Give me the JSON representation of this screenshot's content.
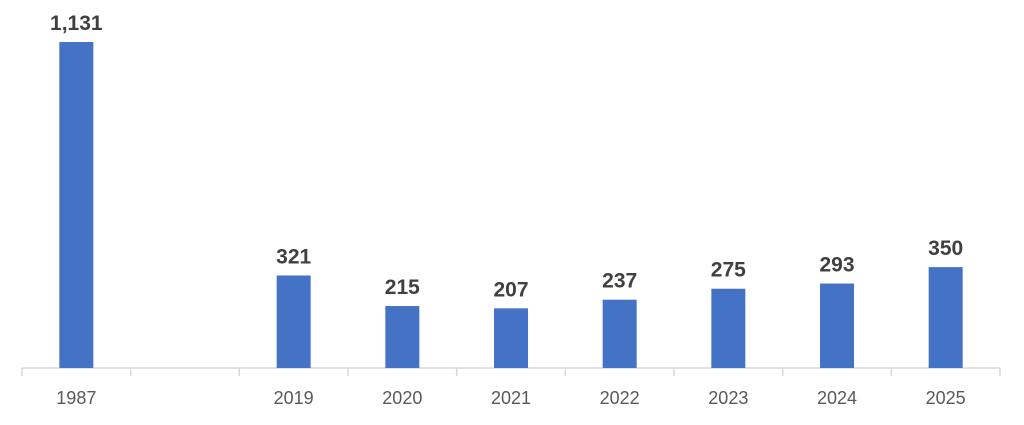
{
  "chart_data": {
    "type": "bar",
    "categories": [
      "1987",
      null,
      "2019",
      "2020",
      "2021",
      "2022",
      "2023",
      "2024",
      "2025"
    ],
    "values": [
      1131,
      null,
      321,
      215,
      207,
      237,
      275,
      293,
      350
    ],
    "value_labels": [
      "1,131",
      null,
      "321",
      "215",
      "207",
      "237",
      "275",
      "293",
      "350"
    ],
    "color": "#4472c4"
  }
}
